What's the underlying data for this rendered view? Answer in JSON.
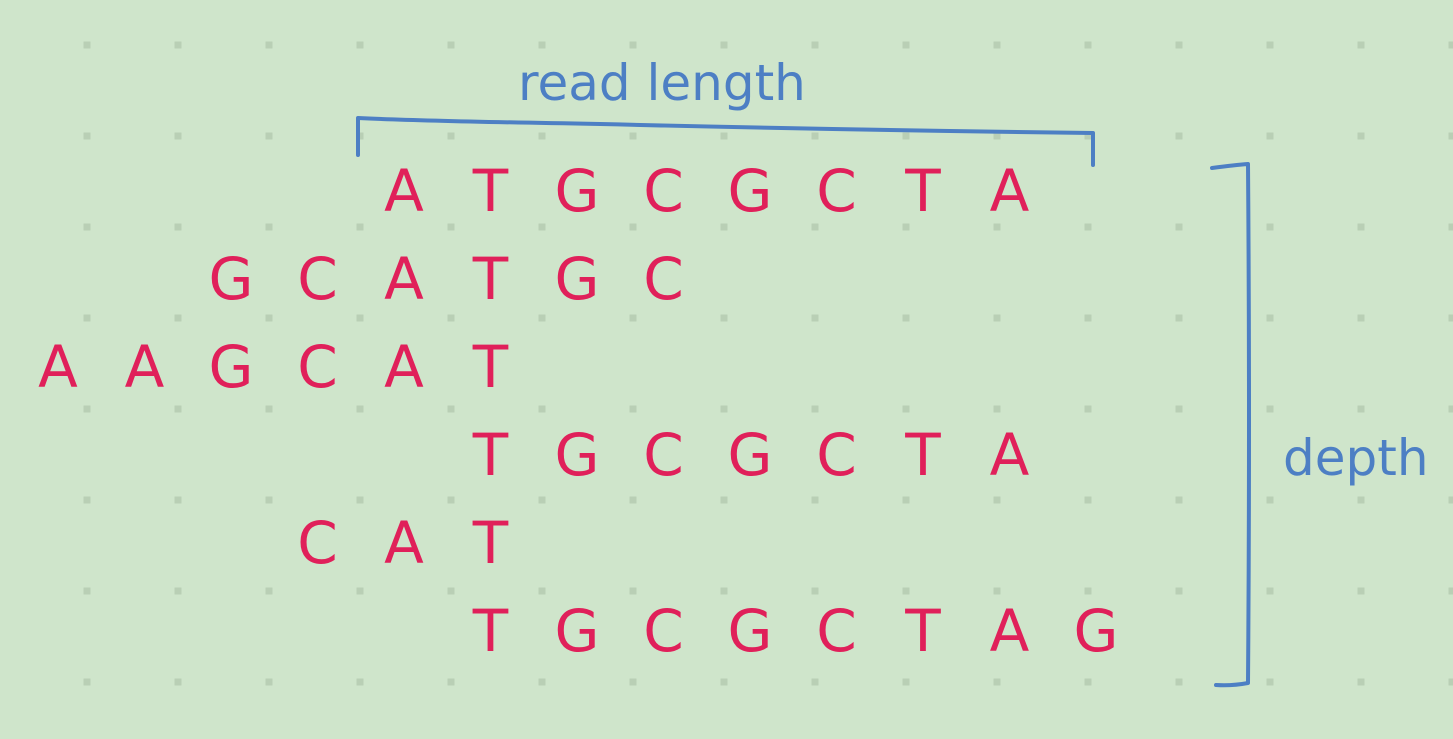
{
  "labels": {
    "read_length": "read length",
    "depth": "depth"
  },
  "colors": {
    "background": "#cfe5cb",
    "bases": "#e0205a",
    "annotation": "#4d7fc4"
  },
  "reads": [
    {
      "sequence": "ATGCGCTA",
      "start_column": 4
    },
    {
      "sequence": "GCATGC",
      "start_column": 2
    },
    {
      "sequence": "AAGCAT",
      "start_column": 0
    },
    {
      "sequence": "TGCGCTA",
      "start_column": 5
    },
    {
      "sequence": "CAT",
      "start_column": 3
    },
    {
      "sequence": "TGCGCTAG",
      "start_column": 5
    }
  ]
}
